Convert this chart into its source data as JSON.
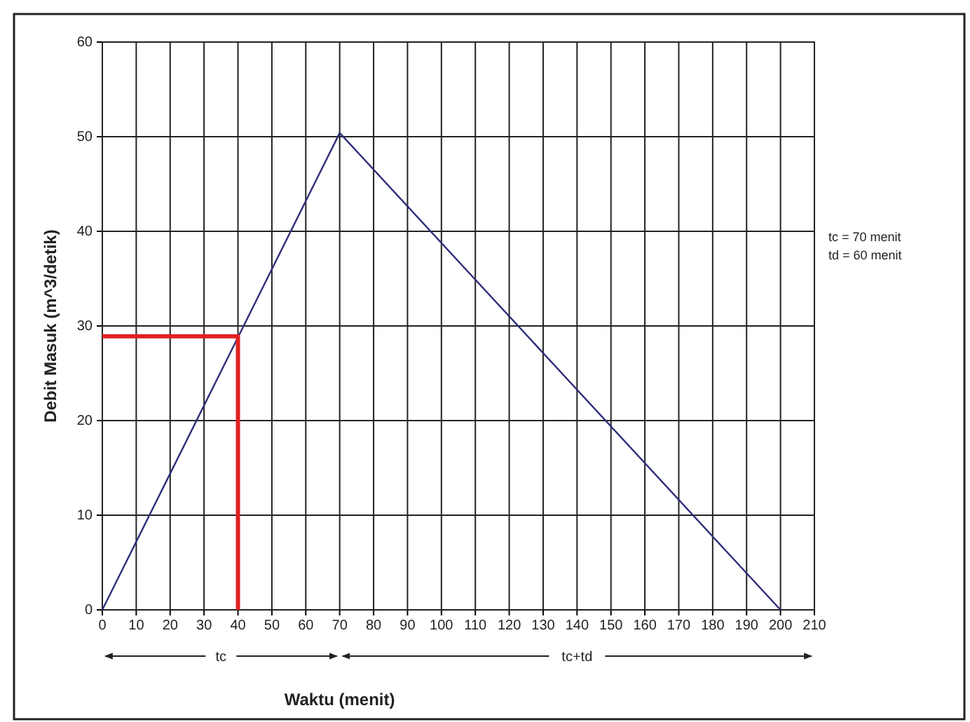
{
  "chart_data": {
    "type": "line",
    "xlabel": "Waktu (menit)",
    "ylabel": "Debit Masuk (m^3/detik)",
    "xlim": [
      0,
      210
    ],
    "xticks": [
      0,
      10,
      20,
      30,
      40,
      50,
      60,
      70,
      80,
      90,
      100,
      110,
      120,
      130,
      140,
      150,
      160,
      170,
      180,
      190,
      200,
      210
    ],
    "ylim": [
      0,
      60
    ],
    "yticks": [
      0,
      10,
      20,
      30,
      40,
      50,
      60
    ],
    "grid": true,
    "marker": "none",
    "line_style": "solid",
    "series": [
      {
        "color": "#2e2e7a",
        "x": [
          0,
          70,
          200
        ],
        "values": [
          0,
          50.4,
          0
        ]
      },
      {
        "color": "#e02020",
        "x": [
          0,
          40,
          40
        ],
        "values": [
          28.9,
          28.9,
          0
        ]
      }
    ],
    "annotations": [
      "tc = 70 menit",
      "td = 60 menit",
      "tc",
      "tc+td"
    ]
  }
}
